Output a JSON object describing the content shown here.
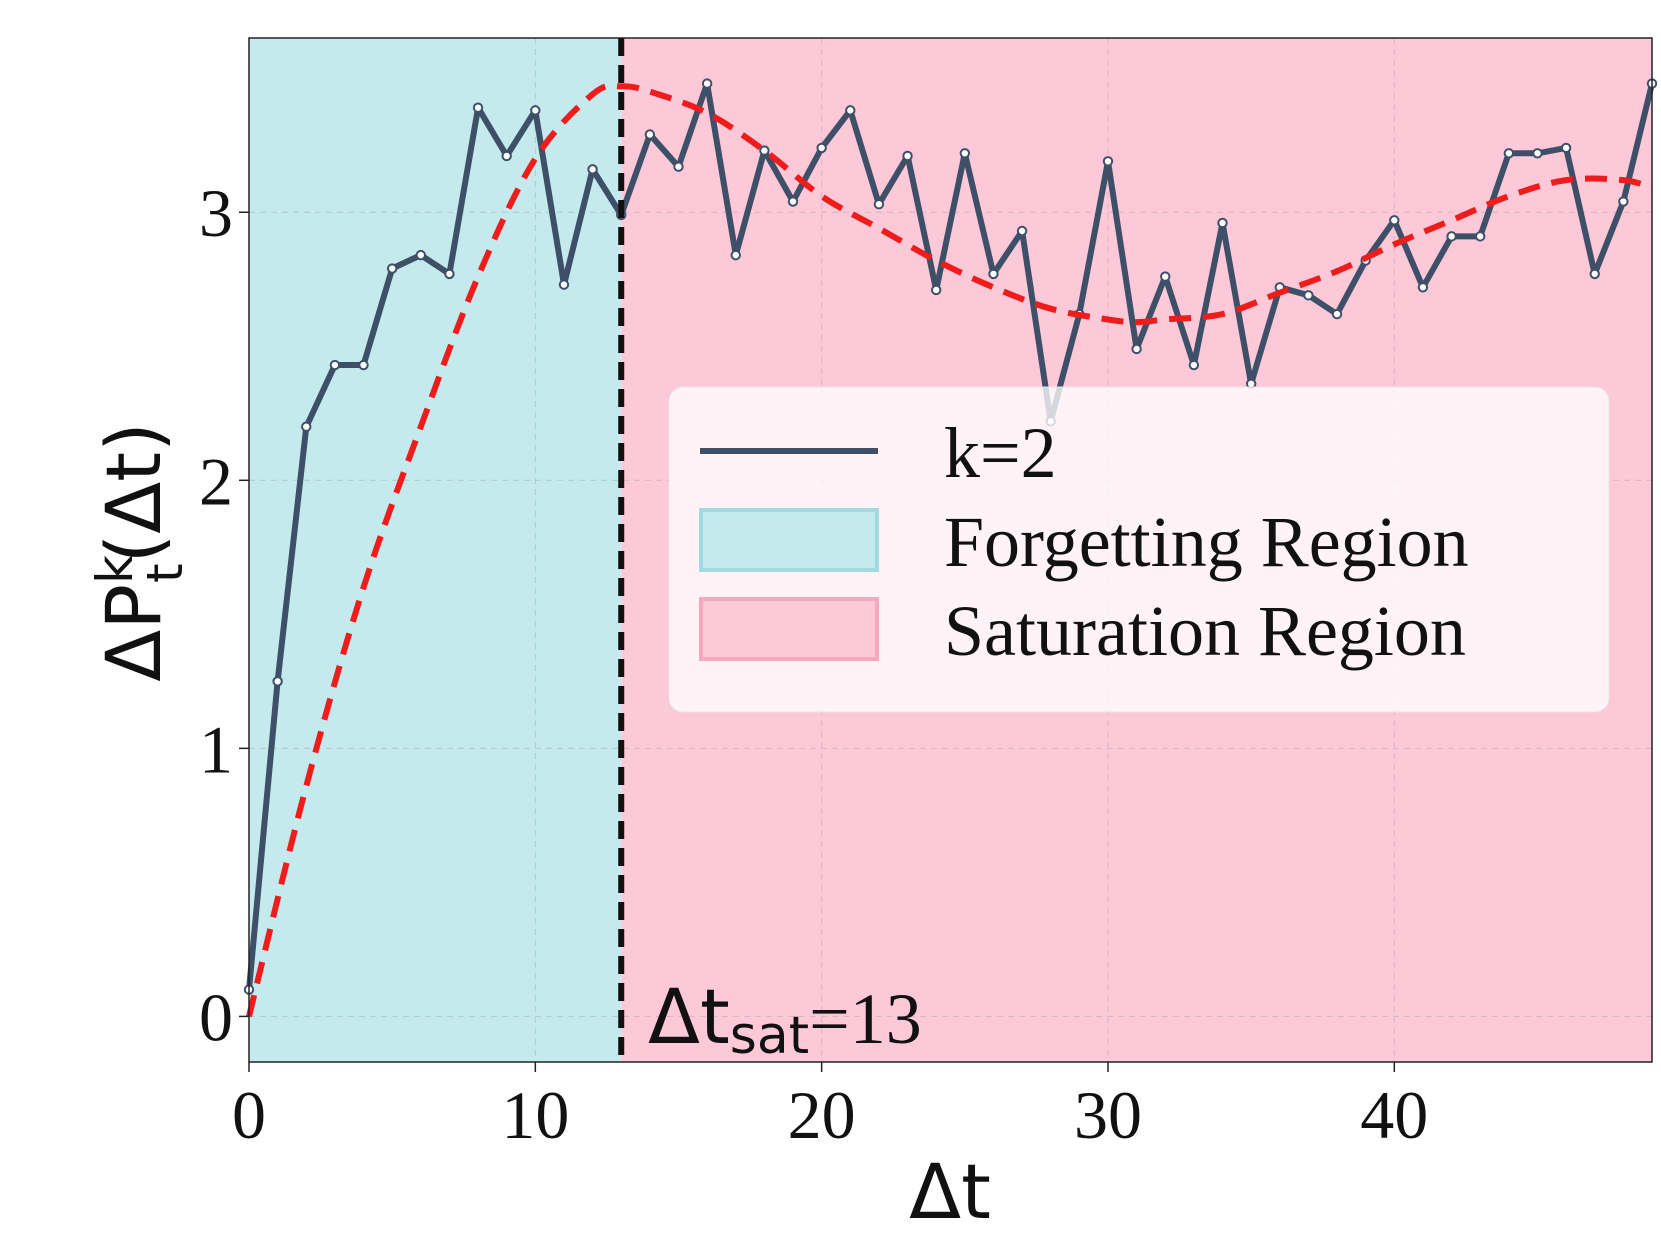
{
  "chart_data": {
    "type": "line",
    "xlabel": "Δt",
    "ylabel_parts": {
      "base": "ΔP",
      "sup": "k",
      "sub": "t",
      "arg": "(Δt)"
    },
    "xlim": [
      0,
      49
    ],
    "ylim": [
      -0.17,
      3.65
    ],
    "xticks": [
      0,
      10,
      20,
      30,
      40
    ],
    "yticks": [
      0,
      1,
      2,
      3
    ],
    "grid": true,
    "legend_position": "center-right",
    "series": [
      {
        "name": "k=2",
        "color": "#3d5068",
        "x": [
          0,
          1,
          2,
          3,
          4,
          5,
          6,
          7,
          8,
          9,
          10,
          11,
          12,
          13,
          14,
          15,
          16,
          17,
          18,
          19,
          20,
          21,
          22,
          23,
          24,
          25,
          26,
          27,
          28,
          29,
          30,
          31,
          32,
          33,
          34,
          35,
          36,
          37,
          38,
          39,
          40,
          41,
          42,
          43,
          44,
          45,
          46,
          47,
          48,
          49
        ],
        "y": [
          0.1,
          1.25,
          2.2,
          2.43,
          2.43,
          2.79,
          2.84,
          2.77,
          3.39,
          3.21,
          3.38,
          2.73,
          3.16,
          2.99,
          3.29,
          3.17,
          3.48,
          2.84,
          3.23,
          3.04,
          3.24,
          3.38,
          3.03,
          3.21,
          2.71,
          3.22,
          2.77,
          2.93,
          2.22,
          2.62,
          3.19,
          2.49,
          2.76,
          2.43,
          2.96,
          2.36,
          2.72,
          2.69,
          2.62,
          2.82,
          2.97,
          2.72,
          2.91,
          2.91,
          3.22,
          3.22,
          3.24,
          2.77,
          3.04,
          3.48
        ]
      }
    ],
    "fit_curve": {
      "style": "dashed",
      "color": "#ef1c1c",
      "x": [
        0,
        2,
        4,
        6,
        8,
        10,
        12,
        13,
        14,
        16,
        18,
        20,
        22,
        24,
        26,
        28,
        30,
        31,
        32,
        34,
        36,
        38,
        40,
        42,
        44,
        46,
        48,
        49
      ],
      "y": [
        0.0,
        0.86,
        1.6,
        2.2,
        2.76,
        3.2,
        3.44,
        3.47,
        3.45,
        3.37,
        3.23,
        3.06,
        2.94,
        2.82,
        2.72,
        2.64,
        2.6,
        2.59,
        2.6,
        2.62,
        2.7,
        2.78,
        2.88,
        2.97,
        3.06,
        3.12,
        3.12,
        3.09
      ]
    },
    "regions": [
      {
        "name": "Forgetting Region",
        "x_start": 0,
        "x_end": 13,
        "color": "#c4eaee"
      },
      {
        "name": "Saturation Region",
        "x_start": 13,
        "x_end": 49,
        "color": "#fdc8d8"
      }
    ],
    "threshold": {
      "x": 13,
      "label_base": "Δt",
      "label_sub": "sat",
      "label_value": "=13",
      "color": "#111111"
    },
    "legend": {
      "entries": [
        {
          "label": "k=2",
          "kind": "line",
          "color": "#3d5068"
        },
        {
          "label": "Forgetting Region",
          "kind": "patch",
          "color": "#c4eaee",
          "edge": "#9fdbe1"
        },
        {
          "label": "Saturation Region",
          "kind": "patch",
          "color": "#fdc8d8",
          "edge": "#f6a9be"
        }
      ]
    }
  }
}
